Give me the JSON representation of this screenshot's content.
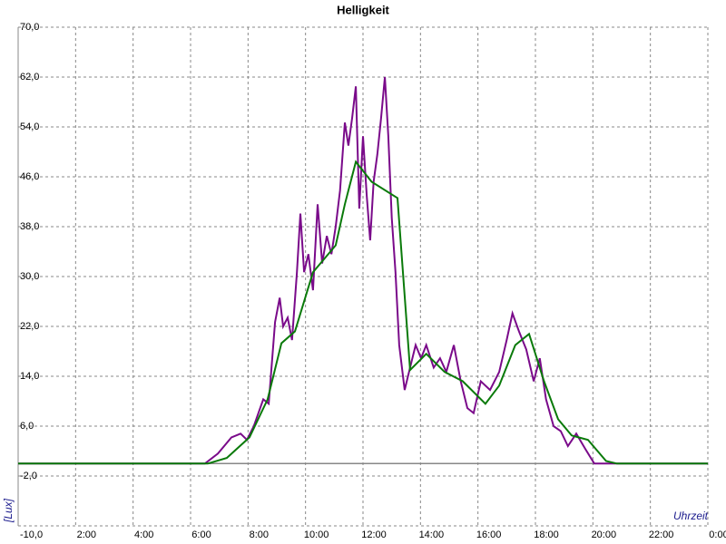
{
  "chart_data": {
    "type": "line",
    "title": "Helligkeit",
    "y_label": "[Lux]",
    "x_label": "Uhrzeit",
    "xlim": [
      0,
      24
    ],
    "ylim": [
      -10,
      70
    ],
    "grid": true,
    "xticks": [
      {
        "value": 2,
        "label": "2:00"
      },
      {
        "value": 4,
        "label": "4:00"
      },
      {
        "value": 6,
        "label": "6:00"
      },
      {
        "value": 8,
        "label": "8:00"
      },
      {
        "value": 10,
        "label": "10:00"
      },
      {
        "value": 12,
        "label": "12:00"
      },
      {
        "value": 14,
        "label": "14:00"
      },
      {
        "value": 16,
        "label": "16:00"
      },
      {
        "value": 18,
        "label": "18:00"
      },
      {
        "value": 20,
        "label": "20:00"
      },
      {
        "value": 22,
        "label": "22:00"
      },
      {
        "value": 24,
        "label": "0:00"
      }
    ],
    "yticks": [
      {
        "value": 70,
        "label": "70,0"
      },
      {
        "value": 62,
        "label": "62,0"
      },
      {
        "value": 54,
        "label": "54,0"
      },
      {
        "value": 46,
        "label": "46,0"
      },
      {
        "value": 38,
        "label": "38,0"
      },
      {
        "value": 30,
        "label": "30,0"
      },
      {
        "value": 22,
        "label": "22,0"
      },
      {
        "value": 14,
        "label": "14,0"
      },
      {
        "value": 6,
        "label": "6,0"
      },
      {
        "value": -2,
        "label": "-2,0"
      },
      {
        "value": -10,
        "label": "-10,0"
      }
    ],
    "series": [
      {
        "color": "#7a0a8a",
        "x": [
          0,
          6.5,
          6.95,
          7.42,
          7.74,
          7.96,
          8.2,
          8.53,
          8.72,
          8.94,
          9.1,
          9.22,
          9.38,
          9.53,
          9.7,
          9.82,
          9.95,
          10.1,
          10.26,
          10.42,
          10.58,
          10.74,
          10.9,
          11.05,
          11.2,
          11.37,
          11.49,
          11.62,
          11.75,
          11.87,
          12.0,
          12.13,
          12.25,
          12.37,
          12.5,
          12.63,
          12.76,
          12.88,
          13.0,
          13.13,
          13.26,
          13.45,
          13.64,
          13.83,
          14.02,
          14.2,
          14.46,
          14.68,
          14.9,
          15.16,
          15.4,
          15.63,
          15.85,
          16.1,
          16.42,
          16.74,
          17.0,
          17.2,
          17.43,
          17.68,
          17.94,
          18.15,
          18.37,
          18.63,
          18.88,
          19.13,
          19.42,
          19.74,
          20.05,
          24
        ],
        "values": [
          0,
          0,
          1.6,
          4.2,
          4.8,
          3.8,
          6,
          10.3,
          9.6,
          22.7,
          26.6,
          22,
          23.4,
          19.8,
          30.7,
          40.1,
          30.7,
          33.6,
          27.8,
          41.6,
          32.1,
          36.5,
          33.6,
          38,
          43.8,
          54.7,
          51,
          55.4,
          60.5,
          40.9,
          52.5,
          43,
          35.8,
          45.2,
          49.6,
          55.4,
          62,
          52.5,
          39.4,
          30.7,
          19,
          11.8,
          15.4,
          19,
          16.9,
          19,
          15.4,
          16.9,
          14.7,
          19,
          13.2,
          8.9,
          8.1,
          13.2,
          11.8,
          14.7,
          19.8,
          24.1,
          21.2,
          18.3,
          13.2,
          16.9,
          10.3,
          6,
          5.2,
          2.8,
          4.8,
          2.3,
          0,
          0
        ]
      },
      {
        "color": "#0a7a0a",
        "x": [
          0,
          6.6,
          7.26,
          8.05,
          8.68,
          9.16,
          9.63,
          10.26,
          11.05,
          11.37,
          11.75,
          12.3,
          13.2,
          13.64,
          14.2,
          14.84,
          15.47,
          16.26,
          16.74,
          17.3,
          17.78,
          18.3,
          18.79,
          19.26,
          19.83,
          20.46,
          20.84,
          24
        ],
        "values": [
          0,
          0,
          0.9,
          4.2,
          10.3,
          19.3,
          21.2,
          30.7,
          35,
          41.6,
          48.4,
          45.2,
          42.6,
          15,
          17.6,
          14.7,
          13.2,
          9.6,
          12.5,
          19,
          20.8,
          13.2,
          7.1,
          4.5,
          3.8,
          0.4,
          0,
          0
        ]
      }
    ]
  }
}
